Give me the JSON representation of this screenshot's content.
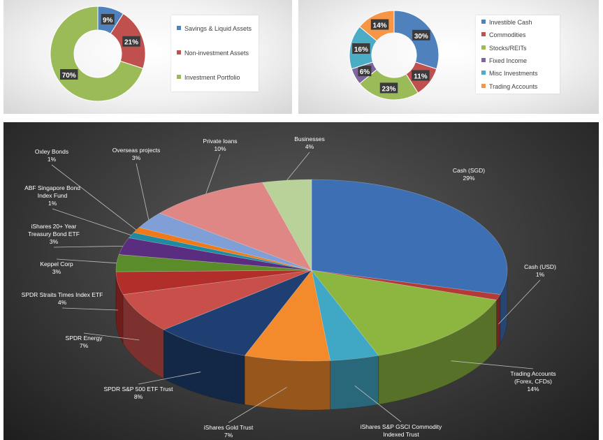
{
  "chart_data": [
    {
      "type": "pie",
      "variant": "donut",
      "categories": [
        "Savings & Liquid Assets",
        "Non-investment Assets",
        "Investment Portfolio"
      ],
      "values": [
        9,
        21,
        70
      ],
      "data_labels": [
        "9%",
        "21%",
        "70%"
      ],
      "colors": [
        "#4f81bd",
        "#c0504d",
        "#9bbb59"
      ],
      "legend_position": "right"
    },
    {
      "type": "pie",
      "variant": "donut",
      "categories": [
        "Investible Cash",
        "Commodities",
        "Stocks/REITs",
        "Fixed Income",
        "Misc Investments",
        "Trading Accounts"
      ],
      "values": [
        30,
        11,
        23,
        6,
        16,
        14
      ],
      "data_labels": [
        "30%",
        "11%",
        "23%",
        "6%",
        "16%",
        "14%"
      ],
      "colors": [
        "#4f81bd",
        "#c0504d",
        "#9bbb59",
        "#8064a2",
        "#4bacc6",
        "#f79646"
      ],
      "legend_position": "right"
    },
    {
      "type": "pie",
      "variant": "3d-pie",
      "categories": [
        "Cash (SGD)",
        "Cash (USD)",
        "Trading Accounts (Forex, CFDs)",
        "iShares S&P GSCI Commodity Indexed Trust",
        "iShares Gold Trust",
        "SPDR S&P 500 ETF Trust",
        "SPDR Energy",
        "SPDR Straits Times Index ETF",
        "Keppel Corp",
        "iShares 20+ Year Treasury Bond ETF",
        "ABF Singapore Bond Index Fund",
        "Oxley Bonds",
        "Overseas projects",
        "Private loans",
        "Businesses"
      ],
      "values": [
        29,
        1,
        14,
        4,
        7,
        8,
        7,
        4,
        3,
        3,
        1,
        1,
        3,
        10,
        4
      ],
      "labels": [
        {
          "lines": [
            "Cash (SGD)",
            "29%"
          ]
        },
        {
          "lines": [
            "Cash (USD)",
            "1%"
          ]
        },
        {
          "lines": [
            "Trading Accounts",
            "(Forex, CFDs)",
            "14%"
          ]
        },
        {
          "lines": [
            "iShares S&P GSCI Commodity",
            "Indexed Trust"
          ]
        },
        {
          "lines": [
            "iShares Gold Trust",
            "7%"
          ]
        },
        {
          "lines": [
            "SPDR S&P 500 ETF Trust",
            "8%"
          ]
        },
        {
          "lines": [
            "SPDR Energy",
            "7%"
          ]
        },
        {
          "lines": [
            "SPDR Straits Times Index ETF",
            "4%"
          ]
        },
        {
          "lines": [
            "Keppel Corp",
            "3%"
          ]
        },
        {
          "lines": [
            "iShares 20+ Year",
            "Treasury Bond ETF",
            "3%"
          ]
        },
        {
          "lines": [
            "ABF Singapore Bond",
            "Index Fund",
            "1%"
          ]
        },
        {
          "lines": [
            "Oxley Bonds",
            "1%"
          ]
        },
        {
          "lines": [
            "Overseas projects",
            "3%"
          ]
        },
        {
          "lines": [
            "Private loans",
            "10%"
          ]
        },
        {
          "lines": [
            "Businesses",
            "4%"
          ]
        }
      ],
      "colors": [
        "#3d6fb5",
        "#b33a36",
        "#8db640",
        "#40a8c4",
        "#f38a2c",
        "#1f3f72",
        "#c94f4b",
        "#b22e2b",
        "#5b8c2a",
        "#5a2d80",
        "#1f8aa0",
        "#f07a1a",
        "#7f9fd6",
        "#de8785",
        "#b9d29a"
      ]
    }
  ]
}
